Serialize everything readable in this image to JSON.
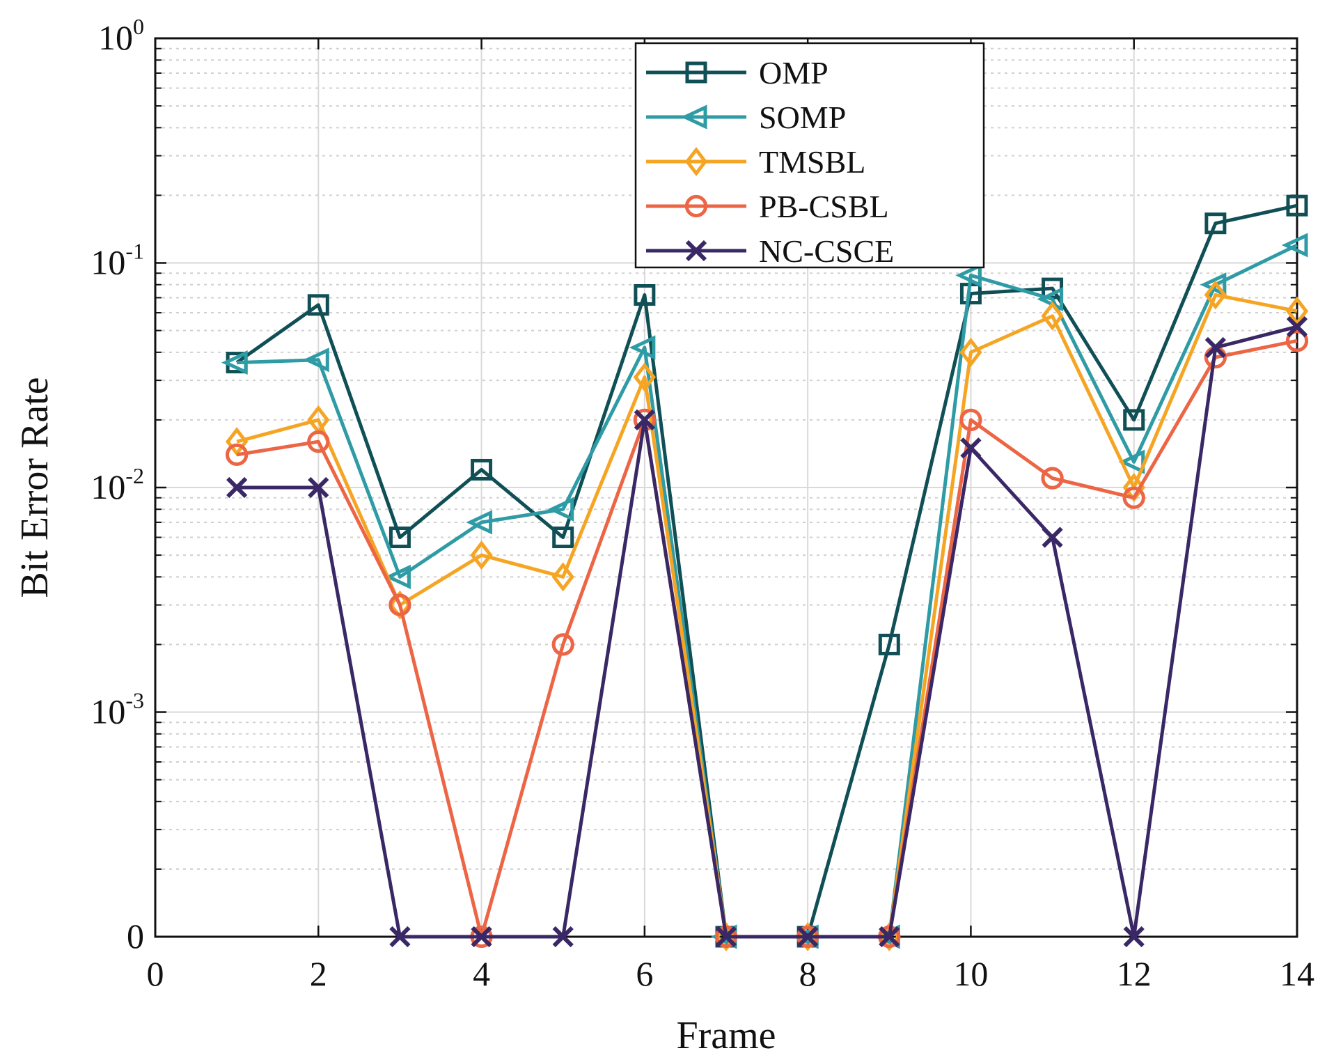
{
  "chart_data": {
    "type": "line",
    "title": "",
    "xlabel": "Frame",
    "ylabel": "Bit Error Rate",
    "xlim": [
      0,
      14
    ],
    "yscale": "log-with-zero-baseline",
    "ylim": [
      0.0001,
      1
    ],
    "zero_label": "0",
    "grid": true,
    "legend_position": "top-center",
    "x_ticks": [
      "0",
      "2",
      "4",
      "6",
      "8",
      "10",
      "12",
      "14"
    ],
    "y_ticks": [
      {
        "base": "10",
        "exp": "0",
        "value": 1
      },
      {
        "base": "10",
        "exp": "-1",
        "value": 0.1
      },
      {
        "base": "10",
        "exp": "-2",
        "value": 0.01
      },
      {
        "base": "10",
        "exp": "-3",
        "value": 0.001
      }
    ],
    "x": [
      1,
      2,
      3,
      4,
      5,
      6,
      7,
      8,
      9,
      10,
      11,
      12,
      13,
      14
    ],
    "series": [
      {
        "name": "OMP",
        "color": "#0f4f55",
        "marker": "square",
        "values": [
          0.036,
          0.065,
          0.006,
          0.012,
          0.006,
          0.072,
          0,
          0,
          0.002,
          0.073,
          0.077,
          0.02,
          0.15,
          0.18
        ]
      },
      {
        "name": "SOMP",
        "color": "#2e9ba5",
        "marker": "triangle-left",
        "values": [
          0.036,
          0.037,
          0.004,
          0.007,
          0.008,
          0.042,
          0,
          0,
          0,
          0.088,
          0.069,
          0.013,
          0.08,
          0.12
        ]
      },
      {
        "name": "TMSBL",
        "color": "#f5a523",
        "marker": "diamond",
        "values": [
          0.016,
          0.02,
          0.003,
          0.005,
          0.004,
          0.031,
          0,
          0,
          0,
          0.04,
          0.058,
          0.01,
          0.072,
          0.061
        ]
      },
      {
        "name": "PB-CSBL",
        "color": "#ec6545",
        "marker": "circle",
        "values": [
          0.014,
          0.016,
          0.003,
          0,
          0.002,
          0.02,
          0,
          0,
          0,
          0.02,
          0.011,
          0.009,
          0.038,
          0.045
        ]
      },
      {
        "name": "NC-CSCE",
        "color": "#3a2866",
        "marker": "x",
        "values": [
          0.01,
          0.01,
          0,
          0,
          0,
          0.02,
          0,
          0,
          0,
          0.015,
          0.006,
          0,
          0.042,
          0.052
        ]
      }
    ]
  }
}
